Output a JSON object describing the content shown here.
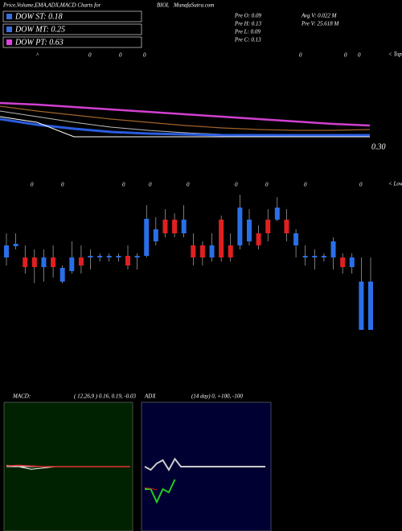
{
  "header": {
    "title": "Price,Volume,EMA,ADX,MACD Charts for",
    "symbol": "BIOL",
    "site": "MunafaSutra.com"
  },
  "legend": [
    {
      "label": "DOW ST: 0.18",
      "color": "#3a6fe0"
    },
    {
      "label": "DOW MT: 0.25",
      "color": "#3a6fe0"
    },
    {
      "label": "DOW PT: 0.63",
      "color": "#e040e0"
    }
  ],
  "stats": [
    "Pre  O: 0.09",
    "Pre  H: 0.13",
    "Pre  L: 0.09",
    "Pre  C: 0.13",
    "Avg V: 0.022  M",
    "Pre  V: 25.618  M"
  ],
  "tops_label": "< Tops",
  "lows_label": "< Lows",
  "tops_markers": [
    "^",
    "0",
    "0",
    "0",
    "0",
    "0",
    "0"
  ],
  "lows_markers": [
    "0",
    "0",
    "0",
    "0",
    "0",
    "0",
    "0",
    "0",
    "0"
  ],
  "price_label": "0.30",
  "macd_title": "MACD:",
  "macd_params": "( 12,26,9 ) 0.16,  0.19,  -0.03",
  "adx_title": "ADX",
  "adx_params": "(14  day) 0,  +100,  -100",
  "chart_data": [
    {
      "type": "line",
      "ylim": [
        0,
        1.4
      ],
      "x": [
        0,
        1,
        2,
        3,
        4,
        5,
        6,
        7,
        8,
        9,
        10
      ],
      "series": [
        {
          "name": "EMA long",
          "color": "#d040d0",
          "values": [
            0.72,
            0.7,
            0.67,
            0.64,
            0.61,
            0.58,
            0.55,
            0.52,
            0.49,
            0.46,
            0.44
          ]
        },
        {
          "name": "EMA mid",
          "color": "#a0642a",
          "values": [
            0.68,
            0.62,
            0.57,
            0.52,
            0.48,
            0.44,
            0.41,
            0.39,
            0.38,
            0.38,
            0.39
          ]
        },
        {
          "name": "EMA short",
          "color": "#bbbbbb",
          "values": [
            0.62,
            0.55,
            0.48,
            0.42,
            0.38,
            0.35,
            0.33,
            0.32,
            0.32,
            0.32,
            0.33
          ]
        },
        {
          "name": "EMA fast",
          "color": "#2a5de0",
          "values": [
            0.52,
            0.45,
            0.4,
            0.36,
            0.34,
            0.33,
            0.32,
            0.32,
            0.32,
            0.32,
            0.32
          ]
        },
        {
          "name": "Price",
          "color": "#ffffff",
          "values": [
            0.55,
            0.48,
            0.3,
            0.3,
            0.3,
            0.3,
            0.3,
            0.3,
            0.3,
            0.3,
            0.3
          ]
        }
      ]
    },
    {
      "type": "candlestick",
      "ylim": [
        0,
        0.21
      ],
      "up_color": "#2a6fe8",
      "down_color": "#e02020",
      "open": [
        0.12,
        0.134,
        0.12,
        0.12,
        0.108,
        0.12,
        0.09,
        0.103,
        0.12,
        0.12,
        0.12,
        0.12,
        0.12,
        0.122,
        0.12,
        0.122,
        0.14,
        0.167,
        0.167,
        0.15,
        0.135,
        0.135,
        0.12,
        0.167,
        0.135,
        0.135,
        0.14,
        0.15,
        0.167,
        0.167,
        0.167,
        0.135,
        0.12,
        0.12,
        0.12,
        0.12,
        0.12,
        0.108,
        0.03,
        0.03
      ],
      "close": [
        0.135,
        0.137,
        0.108,
        0.108,
        0.12,
        0.108,
        0.107,
        0.12,
        0.11,
        0.122,
        0.122,
        0.122,
        0.122,
        0.11,
        0.122,
        0.168,
        0.155,
        0.15,
        0.15,
        0.167,
        0.12,
        0.12,
        0.135,
        0.12,
        0.12,
        0.182,
        0.167,
        0.135,
        0.15,
        0.182,
        0.15,
        0.15,
        0.122,
        0.122,
        0.122,
        0.14,
        0.108,
        0.12,
        0.09,
        0.09
      ],
      "high": [
        0.15,
        0.15,
        0.135,
        0.13,
        0.13,
        0.135,
        0.11,
        0.14,
        0.135,
        0.13,
        0.125,
        0.125,
        0.125,
        0.135,
        0.125,
        0.185,
        0.17,
        0.18,
        0.175,
        0.185,
        0.15,
        0.14,
        0.15,
        0.172,
        0.15,
        0.198,
        0.18,
        0.16,
        0.18,
        0.195,
        0.18,
        0.155,
        0.135,
        0.13,
        0.125,
        0.145,
        0.125,
        0.125,
        0.12,
        0.12
      ],
      "low": [
        0.11,
        0.13,
        0.1,
        0.088,
        0.09,
        0.095,
        0.088,
        0.1,
        0.1,
        0.105,
        0.115,
        0.115,
        0.115,
        0.105,
        0.105,
        0.12,
        0.135,
        0.145,
        0.145,
        0.145,
        0.11,
        0.11,
        0.115,
        0.115,
        0.115,
        0.13,
        0.135,
        0.13,
        0.14,
        0.165,
        0.14,
        0.12,
        0.11,
        0.105,
        0.115,
        0.105,
        0.1,
        0.1,
        0.03,
        0.03
      ]
    },
    {
      "type": "line",
      "ylim": [
        -1,
        1
      ],
      "x": [
        0,
        1,
        2,
        3,
        4,
        5,
        6,
        7,
        8,
        9,
        10
      ],
      "series": [
        {
          "name": "MACD",
          "color": "#ffffff",
          "values": [
            0.02,
            0.0,
            -0.04,
            -0.02,
            0.0,
            0.0,
            0.0,
            0.0,
            0.0,
            0.0,
            0.0
          ]
        },
        {
          "name": "Signal",
          "color": "#e03030",
          "values": [
            0.01,
            0.02,
            0.01,
            0.0,
            0.0,
            0.0,
            0.0,
            0.0,
            0.0,
            0.0,
            0.0
          ]
        }
      ]
    },
    {
      "type": "line",
      "ylim": [
        -100,
        100
      ],
      "x": [
        0,
        1,
        2,
        3,
        4,
        5,
        6,
        7,
        8,
        9,
        10,
        11,
        12,
        13,
        14,
        15,
        16,
        17,
        18,
        19,
        20
      ],
      "series": [
        {
          "name": "ADX",
          "color": "#cccccc",
          "values": [
            0,
            -5,
            5,
            10,
            -5,
            12,
            0,
            0,
            0,
            0,
            0,
            0,
            0,
            0,
            0,
            0,
            0,
            0,
            0,
            0,
            0
          ]
        },
        {
          "name": "+DI",
          "color": "#22cc22",
          "values": [
            -35,
            -35,
            -55,
            -35,
            -40,
            -20,
            null,
            null,
            null,
            null,
            null,
            null,
            null,
            null,
            null,
            null,
            null,
            null,
            null,
            null,
            null
          ]
        },
        {
          "name": "-DI",
          "color": "#cc2222",
          "values": [
            -33,
            -34,
            -36,
            null,
            null,
            null,
            null,
            null,
            null,
            null,
            null,
            null,
            null,
            null,
            null,
            null,
            null,
            null,
            null,
            null,
            null
          ]
        }
      ]
    }
  ]
}
